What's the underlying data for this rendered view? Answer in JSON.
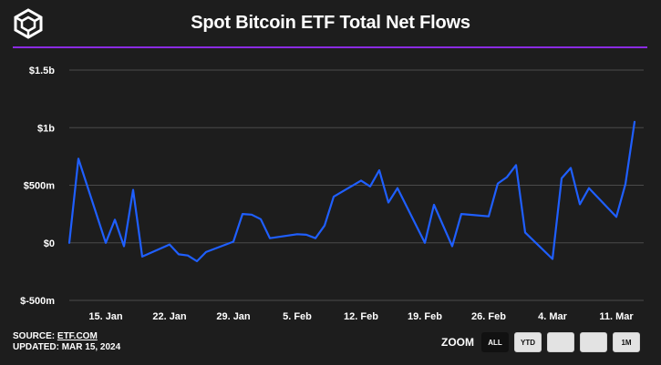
{
  "header": {
    "title": "Spot Bitcoin ETF Total Net Flows",
    "logo_icon": "cube-icon",
    "divider_color": "#8a2be2"
  },
  "footer": {
    "source_label": "SOURCE:",
    "source_link": "ETF.COM",
    "updated": "UPDATED: MAR 15, 2024"
  },
  "zoom": {
    "label": "ZOOM",
    "buttons": [
      "ALL",
      "YTD",
      "",
      "",
      "1M"
    ],
    "active": "ALL"
  },
  "colors": {
    "background": "#1d1d1d",
    "line": "#1f5fff",
    "grid": "#4a4a4a",
    "text": "#ffffff"
  },
  "chart_data": {
    "type": "line",
    "xlabel": "",
    "ylabel": "",
    "ylim": [
      -500,
      1500
    ],
    "yticks": [
      {
        "value": 1500,
        "label": "$1.5b"
      },
      {
        "value": 1000,
        "label": "$1b"
      },
      {
        "value": 500,
        "label": "$500m"
      },
      {
        "value": 0,
        "label": "$0"
      },
      {
        "value": -500,
        "label": "$-500m"
      }
    ],
    "xlim": [
      "2024-01-11",
      "2024-03-14"
    ],
    "xticks": [
      {
        "date": "2024-01-15",
        "label": "15. Jan"
      },
      {
        "date": "2024-01-22",
        "label": "22. Jan"
      },
      {
        "date": "2024-01-29",
        "label": "29. Jan"
      },
      {
        "date": "2024-02-05",
        "label": "5. Feb"
      },
      {
        "date": "2024-02-12",
        "label": "12. Feb"
      },
      {
        "date": "2024-02-19",
        "label": "19. Feb"
      },
      {
        "date": "2024-02-26",
        "label": "26. Feb"
      },
      {
        "date": "2024-03-04",
        "label": "4. Mar"
      },
      {
        "date": "2024-03-11",
        "label": "11. Mar"
      }
    ],
    "grid": true,
    "legend": "none",
    "series": [
      {
        "points": [
          {
            "x": "2024-01-11",
            "y": 0
          },
          {
            "x": "2024-01-12",
            "y": 730
          },
          {
            "x": "2024-01-15",
            "y": 0
          },
          {
            "x": "2024-01-16",
            "y": 200
          },
          {
            "x": "2024-01-17",
            "y": -30
          },
          {
            "x": "2024-01-18",
            "y": 460
          },
          {
            "x": "2024-01-19",
            "y": -120
          },
          {
            "x": "2024-01-22",
            "y": -15
          },
          {
            "x": "2024-01-23",
            "y": -100
          },
          {
            "x": "2024-01-24",
            "y": -110
          },
          {
            "x": "2024-01-25",
            "y": -160
          },
          {
            "x": "2024-01-26",
            "y": -80
          },
          {
            "x": "2024-01-29",
            "y": 10
          },
          {
            "x": "2024-01-30",
            "y": 250
          },
          {
            "x": "2024-01-31",
            "y": 245
          },
          {
            "x": "2024-02-01",
            "y": 205
          },
          {
            "x": "2024-02-02",
            "y": 40
          },
          {
            "x": "2024-02-05",
            "y": 75
          },
          {
            "x": "2024-02-06",
            "y": 70
          },
          {
            "x": "2024-02-07",
            "y": 40
          },
          {
            "x": "2024-02-08",
            "y": 150
          },
          {
            "x": "2024-02-09",
            "y": 400
          },
          {
            "x": "2024-02-12",
            "y": 540
          },
          {
            "x": "2024-02-13",
            "y": 490
          },
          {
            "x": "2024-02-14",
            "y": 630
          },
          {
            "x": "2024-02-15",
            "y": 350
          },
          {
            "x": "2024-02-16",
            "y": 475
          },
          {
            "x": "2024-02-19",
            "y": 0
          },
          {
            "x": "2024-02-20",
            "y": 330
          },
          {
            "x": "2024-02-22",
            "y": -30
          },
          {
            "x": "2024-02-23",
            "y": 250
          },
          {
            "x": "2024-02-26",
            "y": 230
          },
          {
            "x": "2024-02-27",
            "y": 515
          },
          {
            "x": "2024-02-28",
            "y": 570
          },
          {
            "x": "2024-02-29",
            "y": 675
          },
          {
            "x": "2024-03-01",
            "y": 90
          },
          {
            "x": "2024-03-04",
            "y": -140
          },
          {
            "x": "2024-03-05",
            "y": 560
          },
          {
            "x": "2024-03-06",
            "y": 650
          },
          {
            "x": "2024-03-07",
            "y": 335
          },
          {
            "x": "2024-03-08",
            "y": 475
          },
          {
            "x": "2024-03-11",
            "y": 225
          },
          {
            "x": "2024-03-12",
            "y": 510
          },
          {
            "x": "2024-03-13",
            "y": 1050
          }
        ]
      }
    ]
  }
}
